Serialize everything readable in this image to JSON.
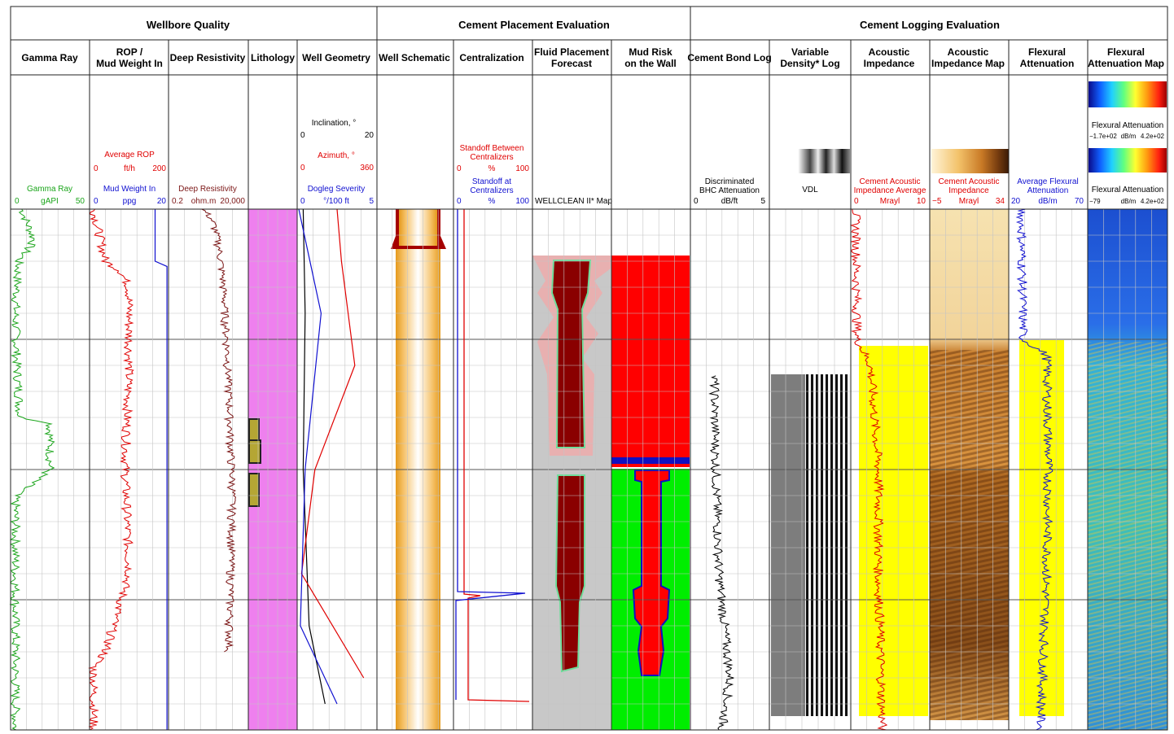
{
  "groups": [
    {
      "label": "Wellbore Quality"
    },
    {
      "label": "Cement Placement Evaluation"
    },
    {
      "label": "Cement Logging Evaluation"
    }
  ],
  "tracks": [
    {
      "title": [
        "Gamma Ray"
      ]
    },
    {
      "title": [
        "ROP /",
        "Mud Weight In"
      ]
    },
    {
      "title": [
        "Deep Resistivity"
      ]
    },
    {
      "title": [
        "Lithology"
      ]
    },
    {
      "title": [
        "Well Geometry"
      ]
    },
    {
      "title": [
        "Well Schematic"
      ]
    },
    {
      "title": [
        "Centralization"
      ]
    },
    {
      "title": [
        "Fluid Placement",
        "Forecast"
      ]
    },
    {
      "title": [
        "Mud Risk",
        "on the Wall"
      ]
    },
    {
      "title": [
        "Cement Bond Log"
      ]
    },
    {
      "title": [
        "Variable",
        "Density* Log"
      ]
    },
    {
      "title": [
        "Acoustic",
        "Impedance"
      ]
    },
    {
      "title": [
        "Acoustic",
        "Impedance Map"
      ]
    },
    {
      "title": [
        "Flexural",
        "Attenuation"
      ]
    },
    {
      "title": [
        "Flexural",
        "Attenuation Map"
      ]
    }
  ],
  "scales": {
    "gamma": {
      "name": "Gamma Ray",
      "min": "0",
      "unit": "gAPI",
      "max": "50",
      "color": "#1aa51a"
    },
    "rop": {
      "name": "Average ROP",
      "min": "0",
      "unit": "ft/h",
      "max": "200",
      "color": "#e00000"
    },
    "mudweight": {
      "name": "Mud Weight In",
      "min": "0",
      "unit": "ppg",
      "max": "20",
      "color": "#1010d0"
    },
    "resistivity": {
      "name": "Deep Resistivity",
      "min": "0.2",
      "unit": "ohm.m",
      "max": "20,000",
      "color": "#7a1414"
    },
    "inclination": {
      "name": "Inclination, °",
      "min": "0",
      "max": "20",
      "color": "#000000"
    },
    "azimuth": {
      "name": "Azimuth, °",
      "min": "0",
      "max": "360",
      "color": "#e00000"
    },
    "dogleg": {
      "name": "Dogleg Severity",
      "min": "0",
      "unit": "°/100 ft",
      "max": "5",
      "color": "#1010d0"
    },
    "standoff_between": {
      "name": [
        "Standoff Between",
        "Centralizers"
      ],
      "min": "0",
      "unit": "%",
      "max": "100",
      "color": "#e00000"
    },
    "standoff_at": {
      "name": [
        "Standoff at",
        "Centralizers"
      ],
      "min": "0",
      "unit": "%",
      "max": "100",
      "color": "#1010d0"
    },
    "wellclean": {
      "name": "WELLCLEAN II* Map"
    },
    "bhc": {
      "name": [
        "Discriminated",
        "BHC Attenuation"
      ],
      "min": "0",
      "unit": "dB/ft",
      "max": "5",
      "color": "#000000"
    },
    "vdl": {
      "name": "VDL"
    },
    "ai": {
      "name": [
        "Cement Acoustic",
        "Impedance Average"
      ],
      "min": "0",
      "unit": "Mrayl",
      "max": "10",
      "color": "#e00000"
    },
    "aimap": {
      "name": [
        "Cement Acoustic",
        "Impedance"
      ],
      "min": "−5",
      "unit": "Mrayl",
      "max": "34",
      "color": "#e00000"
    },
    "flex": {
      "name": [
        "Average Flexural",
        "Attenuation"
      ],
      "min": "20",
      "unit": "dB/m",
      "max": "70",
      "color": "#1010d0"
    },
    "flexmap1": {
      "name": "Flexural Attenuation",
      "min": "−1.7e+02",
      "unit": "dB/m",
      "max": "4.2e+02"
    },
    "flexmap2": {
      "name": "Flexural Attenuation",
      "min": "−79",
      "unit": "dB/m",
      "max": "4.2e+02"
    }
  },
  "chart_data": {
    "type": "line",
    "depth_axis": {
      "reversed": true,
      "major_lines": 4,
      "minor_per_major": 5
    },
    "grid": true,
    "series": [
      {
        "name": "Gamma Ray",
        "unit": "gAPI",
        "range": [
          0,
          50
        ],
        "color": "#1aa51a",
        "depth_frac": [
          0,
          0.06,
          0.1,
          0.2,
          0.3,
          0.4,
          0.41,
          0.5,
          0.55,
          0.6,
          0.7,
          0.8,
          0.9,
          1.0
        ],
        "values": [
          7,
          15,
          5,
          3,
          4,
          6,
          25,
          25,
          3,
          3,
          3,
          3,
          3,
          3
        ]
      },
      {
        "name": "Average ROP",
        "unit": "ft/h",
        "range": [
          0,
          200
        ],
        "color": "#e00000",
        "depth_frac": [
          0,
          0.1,
          0.12,
          0.15,
          0.3,
          0.5,
          0.7,
          0.85,
          0.88,
          1.0
        ],
        "values": [
          10,
          40,
          80,
          100,
          100,
          90,
          100,
          40,
          10,
          10
        ]
      },
      {
        "name": "Mud Weight In",
        "unit": "ppg",
        "range": [
          0,
          20
        ],
        "color": "#1010d0",
        "depth_frac": [
          0,
          0.1,
          0.11,
          0.92,
          1.0
        ],
        "values": [
          16.6,
          16.6,
          19.6,
          19.6,
          19.6
        ]
      },
      {
        "name": "Deep Resistivity",
        "unit": "ohm.m",
        "range": [
          0.2,
          20000
        ],
        "color": "#7a1414",
        "depth_frac": [
          0,
          0.05,
          0.3,
          0.45,
          0.55,
          0.85
        ],
        "values": [
          20,
          200,
          1000,
          1500,
          2000,
          1200
        ]
      },
      {
        "name": "Inclination, °",
        "unit": "°",
        "range": [
          0,
          20
        ],
        "color": "#000000",
        "depth_frac": [
          0,
          0.2,
          0.5,
          0.8,
          0.95
        ],
        "values": [
          1.5,
          2,
          1.5,
          3,
          7
        ]
      },
      {
        "name": "Azimuth, °",
        "unit": "°",
        "range": [
          0,
          360
        ],
        "color": "#e00000",
        "depth_frac": [
          0,
          0.1,
          0.3,
          0.5,
          0.7,
          0.9
        ],
        "values": [
          180,
          200,
          260,
          80,
          20,
          300
        ]
      },
      {
        "name": "Dogleg Severity",
        "unit": "°/100 ft",
        "range": [
          0,
          5
        ],
        "color": "#1010d0",
        "depth_frac": [
          0,
          0.2,
          0.5,
          0.8,
          0.95
        ],
        "values": [
          0.1,
          1.5,
          0.5,
          0.2,
          2.5
        ]
      },
      {
        "name": "Discriminated BHC Attenuation",
        "unit": "dB/ft",
        "range": [
          0,
          5
        ],
        "color": "#000000",
        "depth_frac": [
          0.32,
          0.5,
          0.7,
          0.9,
          1.0
        ],
        "values": [
          1.5,
          1.6,
          1.8,
          2.5,
          2.0
        ]
      },
      {
        "name": "Cement Acoustic Impedance Average",
        "unit": "Mrayl",
        "range": [
          0,
          10
        ],
        "color": "#e00000",
        "depth_frac": [
          0,
          0.25,
          0.3,
          0.5,
          0.7,
          1.0
        ],
        "values": [
          0.6,
          0.8,
          2.5,
          3.5,
          3.5,
          4
        ]
      },
      {
        "name": "Average Flexural Attenuation",
        "unit": "dB/m",
        "range": [
          20,
          70
        ],
        "color": "#1010d0",
        "depth_frac": [
          0,
          0.25,
          0.28,
          0.5,
          0.7,
          1.0
        ],
        "values": [
          28,
          29,
          44,
          45,
          44,
          40
        ]
      }
    ]
  }
}
